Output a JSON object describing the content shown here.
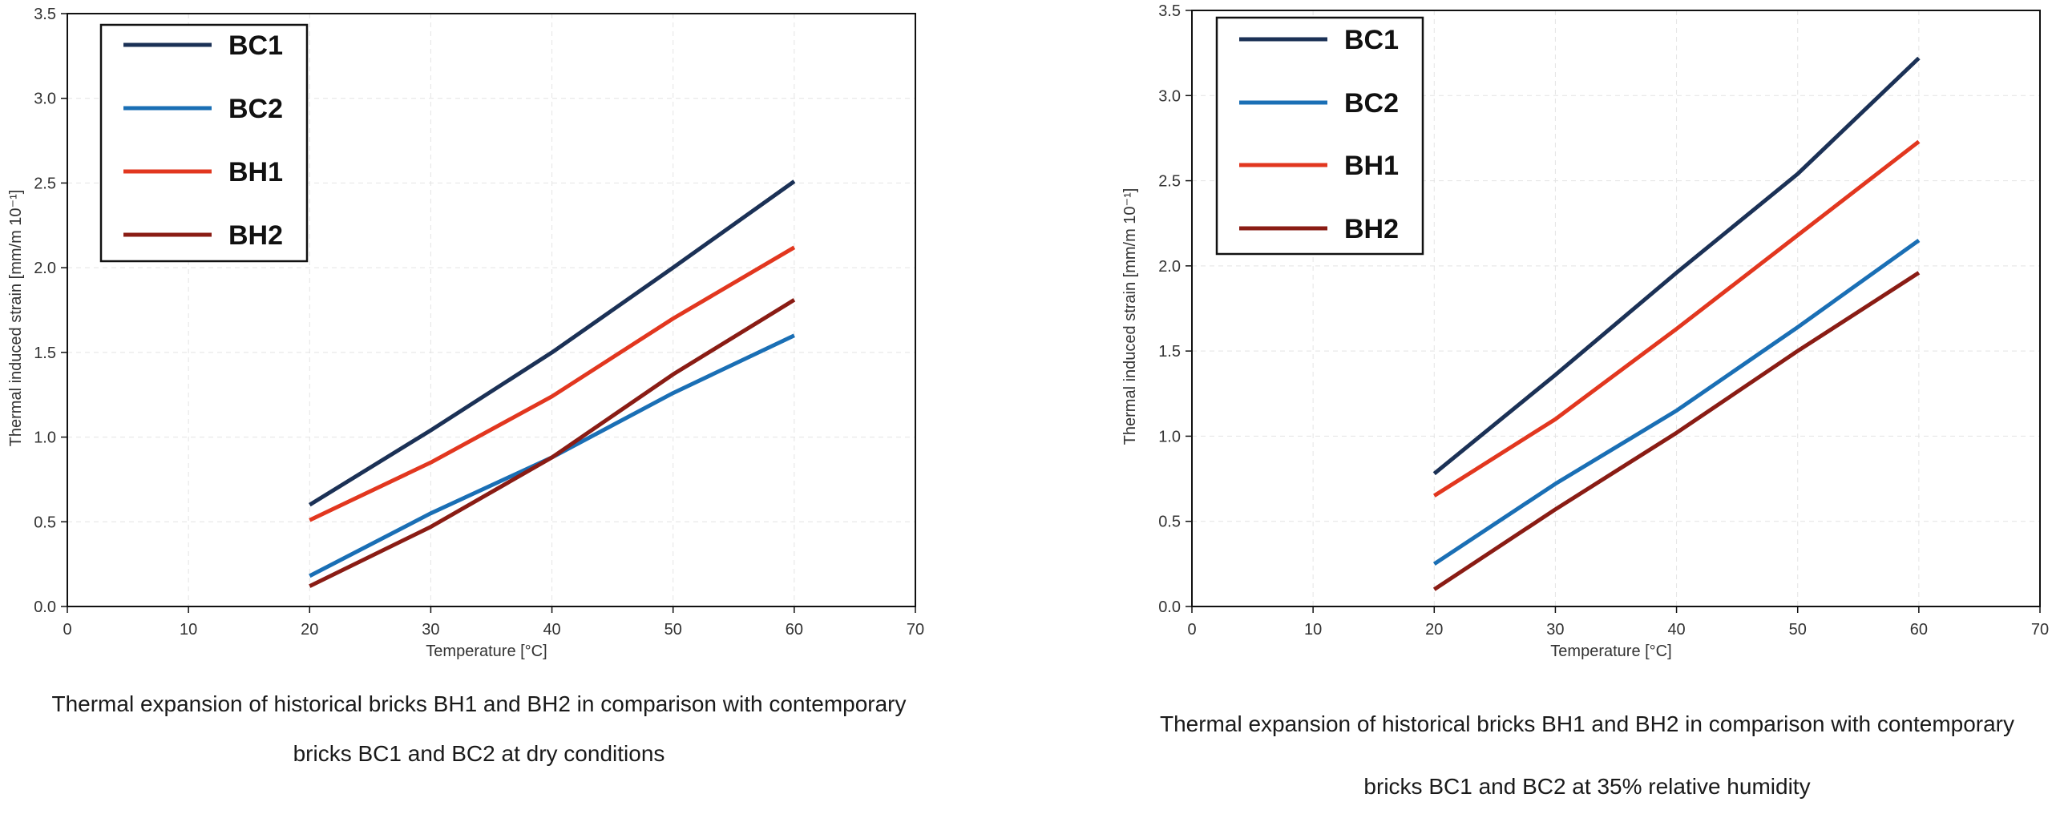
{
  "chart_data": [
    {
      "type": "line",
      "title": "",
      "xlabel": "Temperature [°C]",
      "ylabel": "Thermal induced strain [mm/m 10⁻¹]",
      "xlim": [
        0,
        70
      ],
      "ylim": [
        0,
        3.5
      ],
      "xticks": [
        "0",
        "10",
        "20",
        "30",
        "40",
        "50",
        "60",
        "70"
      ],
      "yticks": [
        "0.0",
        "0.5",
        "1.0",
        "1.5",
        "2.0",
        "2.5",
        "3.0",
        "3.5"
      ],
      "grid": true,
      "legend_position": "top-left",
      "x": [
        20,
        30,
        40,
        50,
        60
      ],
      "series": [
        {
          "name": "BC1",
          "color": "#1b3156",
          "values": [
            0.6,
            1.04,
            1.5,
            2.0,
            2.51
          ]
        },
        {
          "name": "BC2",
          "color": "#1a6fb5",
          "values": [
            0.18,
            0.55,
            0.88,
            1.26,
            1.6
          ]
        },
        {
          "name": "BH1",
          "color": "#e2371f",
          "values": [
            0.51,
            0.85,
            1.24,
            1.7,
            2.12
          ]
        },
        {
          "name": "BH2",
          "color": "#8a1c14",
          "values": [
            0.12,
            0.47,
            0.88,
            1.37,
            1.81
          ]
        }
      ],
      "caption": [
        "Thermal expansion of historical bricks BH1 and BH2 in comparison with contemporary",
        "bricks BC1 and BC2 at dry conditions"
      ]
    },
    {
      "type": "line",
      "title": "",
      "xlabel": "Temperature [°C]",
      "ylabel": "Thermal induced strain [mm/m 10⁻¹]",
      "xlim": [
        0,
        70
      ],
      "ylim": [
        0,
        3.5
      ],
      "xticks": [
        "0",
        "10",
        "20",
        "30",
        "40",
        "50",
        "60",
        "70"
      ],
      "yticks": [
        "0.0",
        "0.5",
        "1.0",
        "1.5",
        "2.0",
        "2.5",
        "3.0",
        "3.5"
      ],
      "grid": true,
      "legend_position": "top-left",
      "x": [
        20,
        30,
        40,
        50,
        60
      ],
      "series": [
        {
          "name": "BC1",
          "color": "#1b3156",
          "values": [
            0.78,
            1.36,
            1.96,
            2.54,
            3.22
          ]
        },
        {
          "name": "BC2",
          "color": "#1a6fb5",
          "values": [
            0.25,
            0.72,
            1.15,
            1.64,
            2.15
          ]
        },
        {
          "name": "BH1",
          "color": "#e2371f",
          "values": [
            0.65,
            1.1,
            1.63,
            2.18,
            2.73
          ]
        },
        {
          "name": "BH2",
          "color": "#8a1c14",
          "values": [
            0.1,
            0.57,
            1.02,
            1.5,
            1.96
          ]
        }
      ],
      "caption": [
        "Thermal expansion of historical bricks BH1 and BH2 in comparison with contemporary",
        "bricks BC1 and BC2 at 35% relative humidity"
      ]
    }
  ]
}
